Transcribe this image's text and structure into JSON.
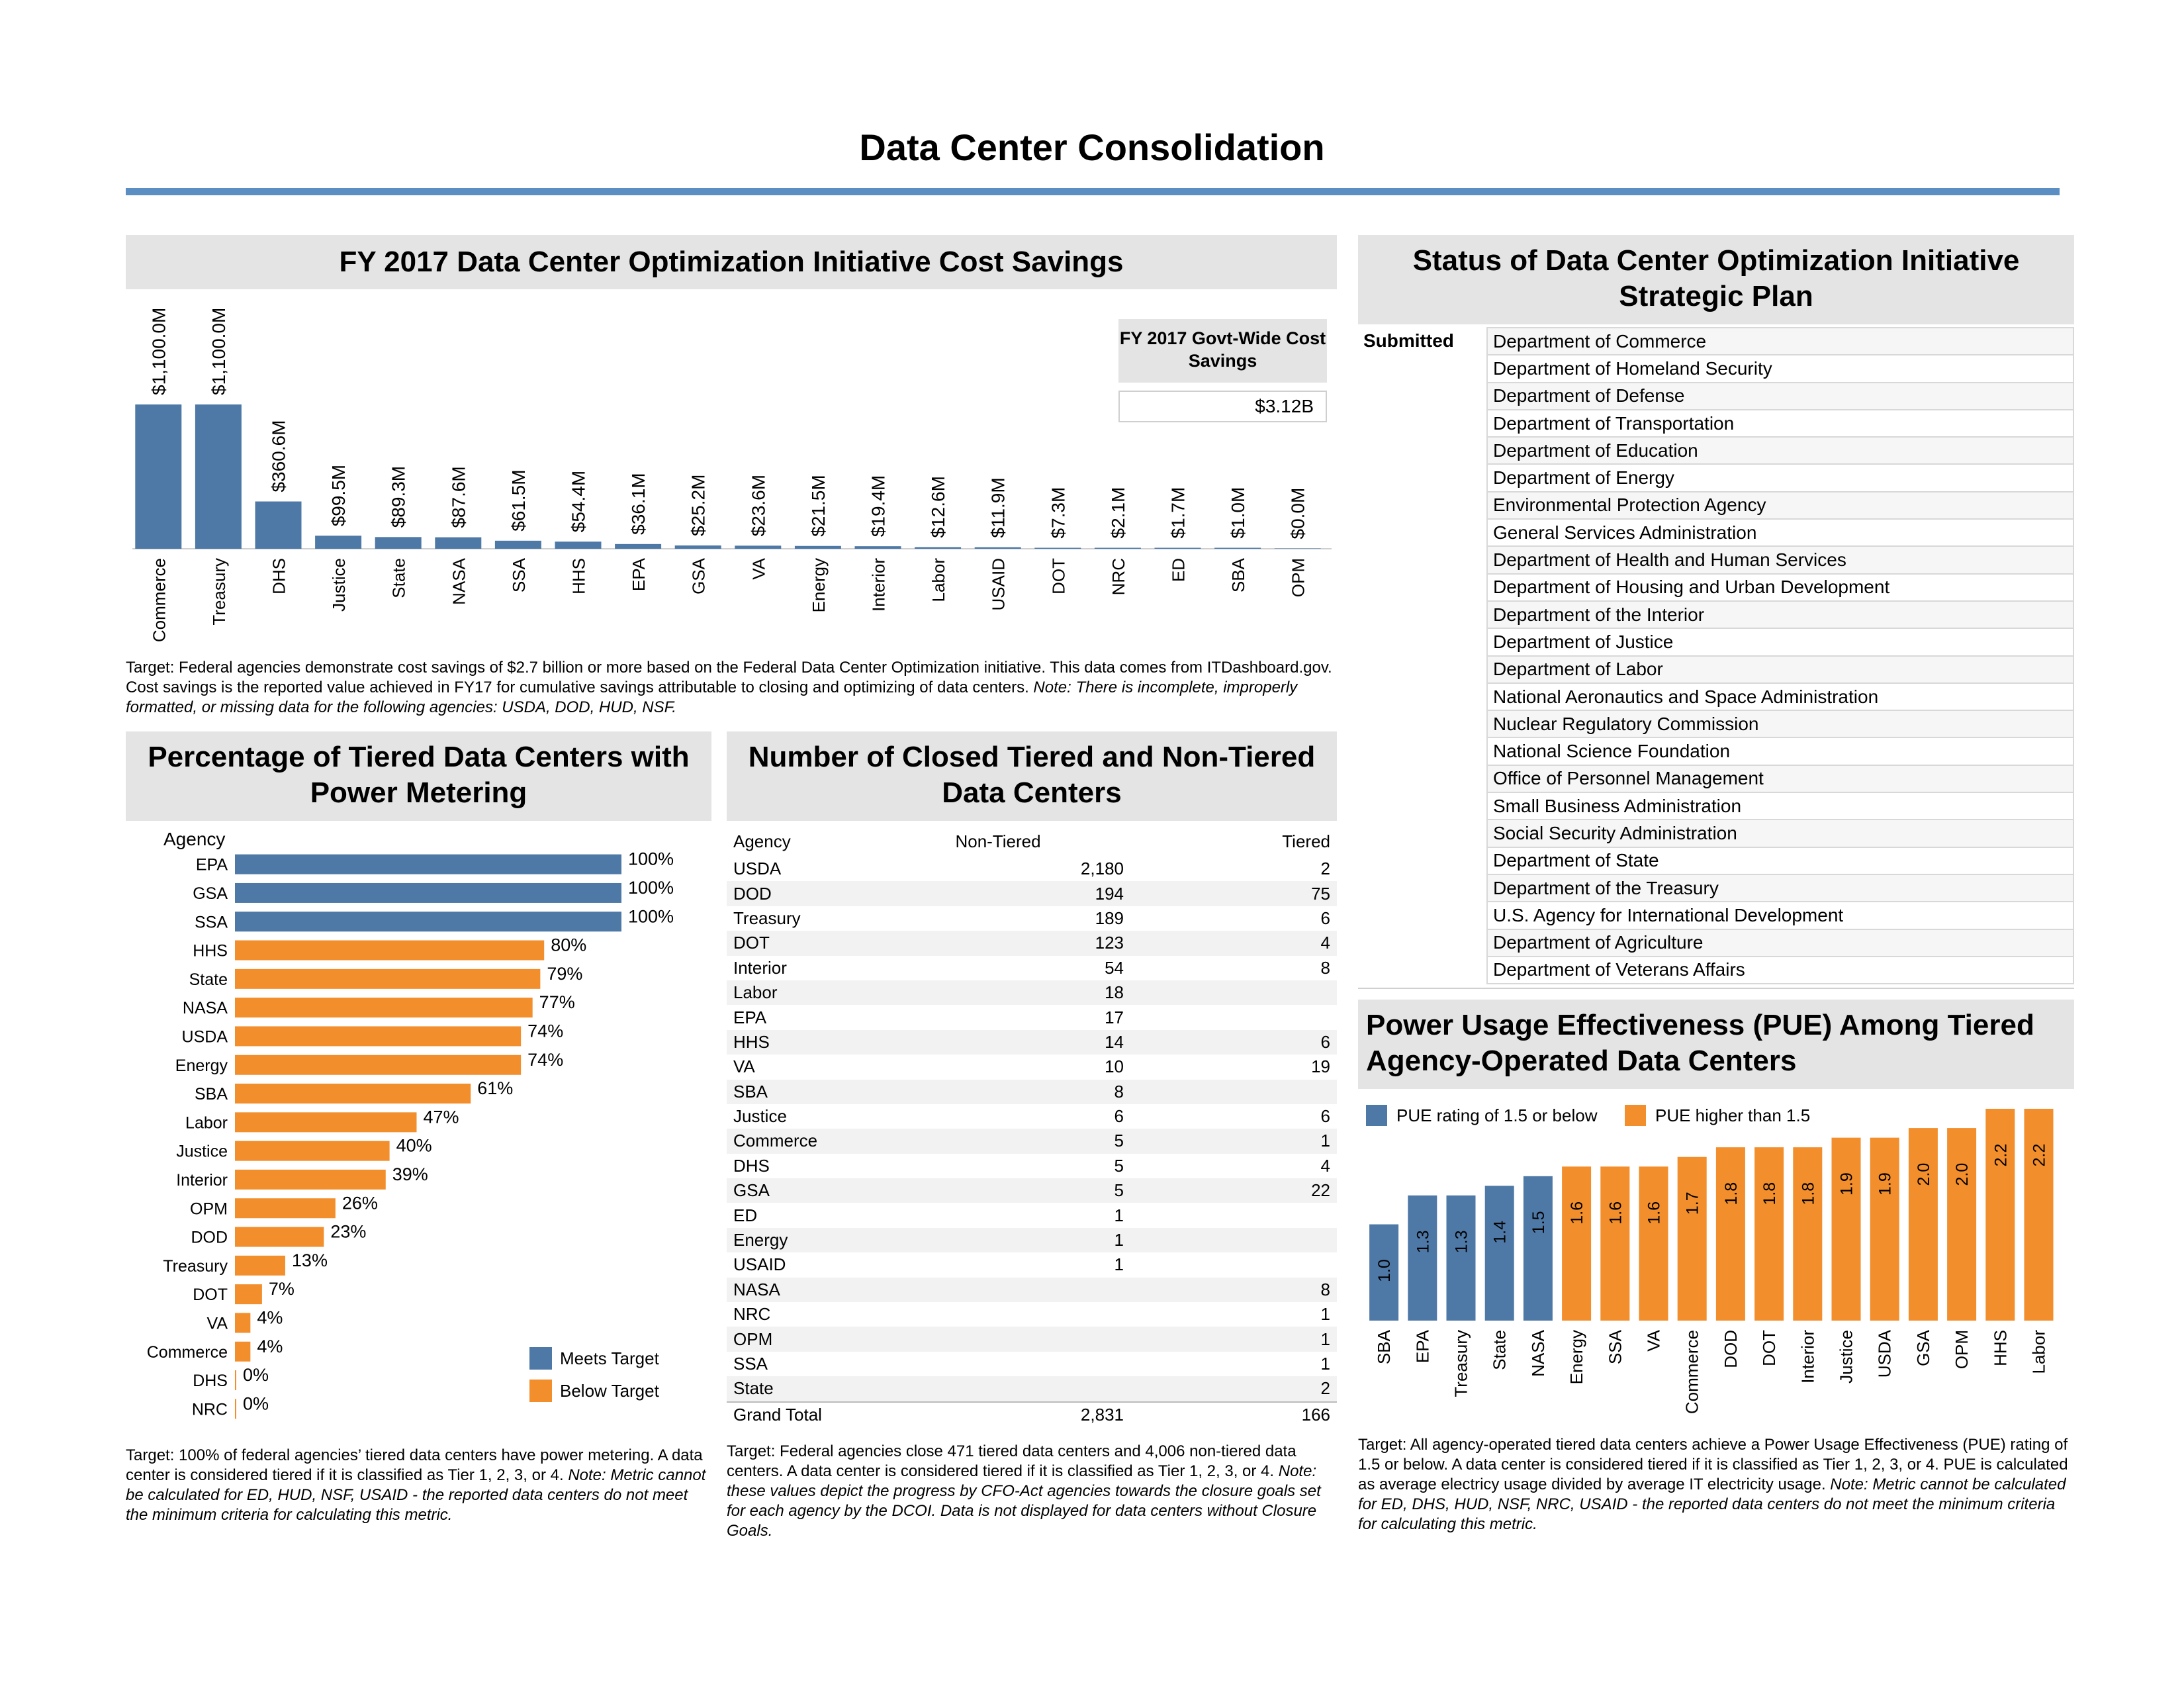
{
  "page_title": "Data Center Consolidation",
  "colors": {
    "meets": "#4e79a7",
    "below": "#f28e2b",
    "header_bg": "#e4e4e4",
    "rule": "#5b8ec3"
  },
  "cost": {
    "title": "FY 2017 Data Center Optimization Initiative Cost Savings",
    "govtwide_label": "FY 2017 Govt-Wide Cost Savings",
    "govtwide_value": "$3.12B",
    "note_main": "Target: Federal agencies demonstrate cost savings of $2.7 billion or more based on the Federal Data Center Optimization initiative. This data comes from ITDashboard.gov. Cost savings is the reported value achieved in FY17 for cumulative savings attributable to closing and optimizing of data centers.",
    "note_italic": "Note: There is incomplete, improperly formatted, or missing data for the following agencies: USDA, DOD, HUD, NSF."
  },
  "metering": {
    "title": "Percentage of Tiered Data Centers with Power Metering",
    "axis_label": "Agency",
    "legend_meets": "Meets Target",
    "legend_below": "Below Target",
    "note_main": "Target: 100% of federal agencies’ tiered data centers have power metering. A data center is considered tiered if it is classified as Tier 1, 2, 3, or 4.",
    "note_italic": "Note: Metric cannot be calculated for ED, HUD, NSF, USAID - the reported data centers do not meet the minimum criteria for calculating this metric."
  },
  "closed": {
    "title": "Number of Closed Tiered and Non-Tiered Data Centers",
    "col_agency": "Agency",
    "col_nontiered": "Non-Tiered",
    "col_tiered": "Tiered",
    "rows": [
      {
        "agency": "USDA",
        "nontiered": "2,180",
        "tiered": "2"
      },
      {
        "agency": "DOD",
        "nontiered": "194",
        "tiered": "75"
      },
      {
        "agency": "Treasury",
        "nontiered": "189",
        "tiered": "6"
      },
      {
        "agency": "DOT",
        "nontiered": "123",
        "tiered": "4"
      },
      {
        "agency": "Interior",
        "nontiered": "54",
        "tiered": "8"
      },
      {
        "agency": "Labor",
        "nontiered": "18",
        "tiered": ""
      },
      {
        "agency": "EPA",
        "nontiered": "17",
        "tiered": ""
      },
      {
        "agency": "HHS",
        "nontiered": "14",
        "tiered": "6"
      },
      {
        "agency": "VA",
        "nontiered": "10",
        "tiered": "19"
      },
      {
        "agency": "SBA",
        "nontiered": "8",
        "tiered": ""
      },
      {
        "agency": "Justice",
        "nontiered": "6",
        "tiered": "6"
      },
      {
        "agency": "Commerce",
        "nontiered": "5",
        "tiered": "1"
      },
      {
        "agency": "DHS",
        "nontiered": "5",
        "tiered": "4"
      },
      {
        "agency": "GSA",
        "nontiered": "5",
        "tiered": "22"
      },
      {
        "agency": "ED",
        "nontiered": "1",
        "tiered": ""
      },
      {
        "agency": "Energy",
        "nontiered": "1",
        "tiered": ""
      },
      {
        "agency": "USAID",
        "nontiered": "1",
        "tiered": ""
      },
      {
        "agency": "NASA",
        "nontiered": "",
        "tiered": "8"
      },
      {
        "agency": "NRC",
        "nontiered": "",
        "tiered": "1"
      },
      {
        "agency": "OPM",
        "nontiered": "",
        "tiered": "1"
      },
      {
        "agency": "SSA",
        "nontiered": "",
        "tiered": "1"
      },
      {
        "agency": "State",
        "nontiered": "",
        "tiered": "2"
      }
    ],
    "total_label": "Grand Total",
    "total_nontiered": "2,831",
    "total_tiered": "166",
    "note_main": "Target: Federal agencies close 471 tiered data centers and 4,006 non-tiered data centers. A data center is considered tiered if it is classified as Tier 1, 2, 3, or 4.",
    "note_italic": "Note: these values depict the progress by CFO-Act agencies towards the closure goals set for each agency by the DCOI. Data is not displayed for data centers without Closure Goals."
  },
  "status": {
    "title": "Status of Data Center Optimization Initiative Strategic Plan",
    "label": "Submitted",
    "departments": [
      "Department of Commerce",
      "Department of Homeland Security",
      "Department of Defense",
      "Department of Transportation",
      "Department of Education",
      "Department of Energy",
      "Environmental Protection Agency",
      "General Services Administration",
      "Department of Health and Human Services",
      "Department of Housing and Urban Development",
      "Department of the Interior",
      "Department of Justice",
      "Department of Labor",
      "National Aeronautics and Space Administration",
      "Nuclear Regulatory Commission",
      "National Science Foundation",
      "Office of Personnel Management",
      "Small Business Administration",
      "Social Security Administration",
      "Department of State",
      "Department of the Treasury",
      "U.S. Agency for International Development",
      "Department of Agriculture",
      "Department of Veterans Affairs"
    ]
  },
  "pue": {
    "title": "Power Usage Effectiveness (PUE) Among Tiered Agency-Operated Data Centers",
    "legend_good": "PUE rating of 1.5 or below",
    "legend_bad": "PUE higher than 1.5",
    "note_main": "Target: All agency-operated tiered data centers achieve a Power Usage Effectiveness (PUE) rating of 1.5 or below. A data center is considered tiered if it is classified as Tier 1, 2, 3, or 4. PUE is calculated as average electricy usage divided by average IT electricity usage.",
    "note_italic": "Note: Metric cannot be calculated for ED, DHS, HUD, NSF, NRC, USAID - the reported data centers do not meet the minimum criteria for calculating this metric."
  },
  "chart_data": [
    {
      "type": "bar",
      "title": "FY 2017 Data Center Optimization Initiative Cost Savings",
      "categories": [
        "Commerce",
        "Treasury",
        "DHS",
        "Justice",
        "State",
        "NASA",
        "SSA",
        "HHS",
        "EPA",
        "GSA",
        "VA",
        "Energy",
        "Interior",
        "Labor",
        "USAID",
        "DOT",
        "NRC",
        "ED",
        "SBA",
        "OPM"
      ],
      "values": [
        1100.0,
        1100.0,
        360.6,
        99.5,
        89.3,
        87.6,
        61.5,
        54.4,
        36.1,
        25.2,
        23.6,
        21.5,
        19.4,
        12.6,
        11.9,
        7.3,
        2.1,
        1.7,
        1.0,
        0.0
      ],
      "labels": [
        "$1,100.0M",
        "$1,100.0M",
        "$360.6M",
        "$99.5M",
        "$89.3M",
        "$87.6M",
        "$61.5M",
        "$54.4M",
        "$36.1M",
        "$25.2M",
        "$23.6M",
        "$21.5M",
        "$19.4M",
        "$12.6M",
        "$11.9M",
        "$7.3M",
        "$2.1M",
        "$1.7M",
        "$1.0M",
        "$0.0M"
      ],
      "unit": "$M"
    },
    {
      "type": "bar",
      "orientation": "horizontal",
      "title": "Percentage of Tiered Data Centers with Power Metering",
      "ylabel": "Agency",
      "categories": [
        "EPA",
        "GSA",
        "SSA",
        "HHS",
        "State",
        "NASA",
        "USDA",
        "Energy",
        "SBA",
        "Labor",
        "Justice",
        "Interior",
        "OPM",
        "DOD",
        "Treasury",
        "DOT",
        "VA",
        "Commerce",
        "DHS",
        "NRC"
      ],
      "values": [
        100,
        100,
        100,
        80,
        79,
        77,
        74,
        74,
        61,
        47,
        40,
        39,
        26,
        23,
        13,
        7,
        4,
        4,
        0,
        0
      ],
      "labels": [
        "100%",
        "100%",
        "100%",
        "80%",
        "79%",
        "77%",
        "74%",
        "74%",
        "61%",
        "47%",
        "40%",
        "39%",
        "26%",
        "23%",
        "13%",
        "7%",
        "4%",
        "4%",
        "0%",
        "0%"
      ],
      "xlim": [
        0,
        100
      ],
      "target": 100
    },
    {
      "type": "bar",
      "title": "Power Usage Effectiveness (PUE) Among Tiered Agency-Operated Data Centers",
      "categories": [
        "SBA",
        "EPA",
        "Treasury",
        "State",
        "NASA",
        "Energy",
        "SSA",
        "VA",
        "Commerce",
        "DOD",
        "DOT",
        "Interior",
        "Justice",
        "USDA",
        "GSA",
        "OPM",
        "HHS",
        "Labor"
      ],
      "values": [
        1.0,
        1.3,
        1.3,
        1.4,
        1.5,
        1.6,
        1.6,
        1.6,
        1.7,
        1.8,
        1.8,
        1.8,
        1.9,
        1.9,
        2.0,
        2.0,
        2.2,
        2.2
      ],
      "labels": [
        "1.0",
        "1.3",
        "1.3",
        "1.4",
        "1.5",
        "1.6",
        "1.6",
        "1.6",
        "1.7",
        "1.8",
        "1.8",
        "1.8",
        "1.9",
        "1.9",
        "2.0",
        "2.0",
        "2.2",
        "2.2"
      ],
      "target": 1.5,
      "legend": "top-left"
    }
  ]
}
